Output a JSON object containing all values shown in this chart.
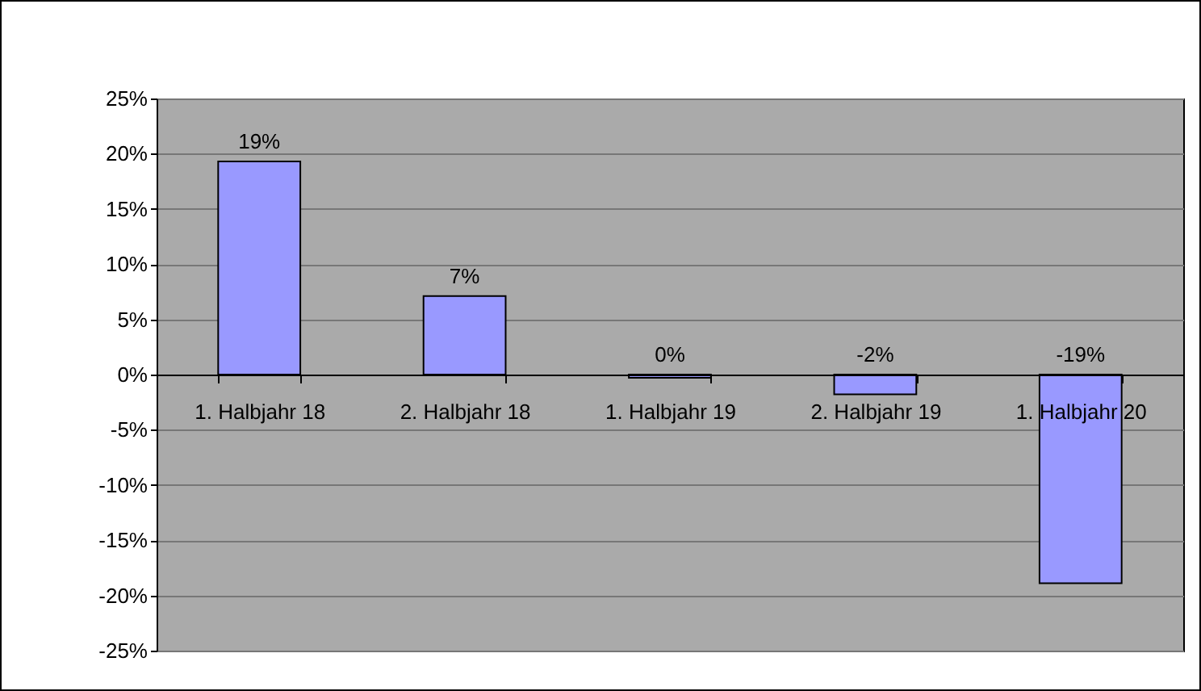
{
  "chart_data": {
    "type": "bar",
    "categories": [
      "1. Halbjahr 18",
      "2. Halbjahr 18",
      "1. Halbjahr 19",
      "2. Halbjahr 19",
      "1. Halbjahr 20"
    ],
    "values": [
      19.3,
      7.1,
      -0.3,
      -1.8,
      -18.9
    ],
    "color": "#9999ff",
    "value_labels": [
      "19%",
      "7%",
      "0%",
      "-2%",
      "-19%"
    ],
    "ylim": [
      -25,
      25
    ],
    "yticks": [
      {
        "value": -25,
        "label": "-25%"
      },
      {
        "value": -20,
        "label": "-20%"
      },
      {
        "value": -15,
        "label": "-15%"
      },
      {
        "value": -10,
        "label": "-10%"
      },
      {
        "value": -5,
        "label": "-5%"
      },
      {
        "value": 0,
        "label": "0%"
      },
      {
        "value": 5,
        "label": "5%"
      },
      {
        "value": 10,
        "label": "10%"
      },
      {
        "value": 15,
        "label": "15%"
      },
      {
        "value": 20,
        "label": "20%"
      },
      {
        "value": 25,
        "label": "25%"
      }
    ],
    "grid": true
  }
}
